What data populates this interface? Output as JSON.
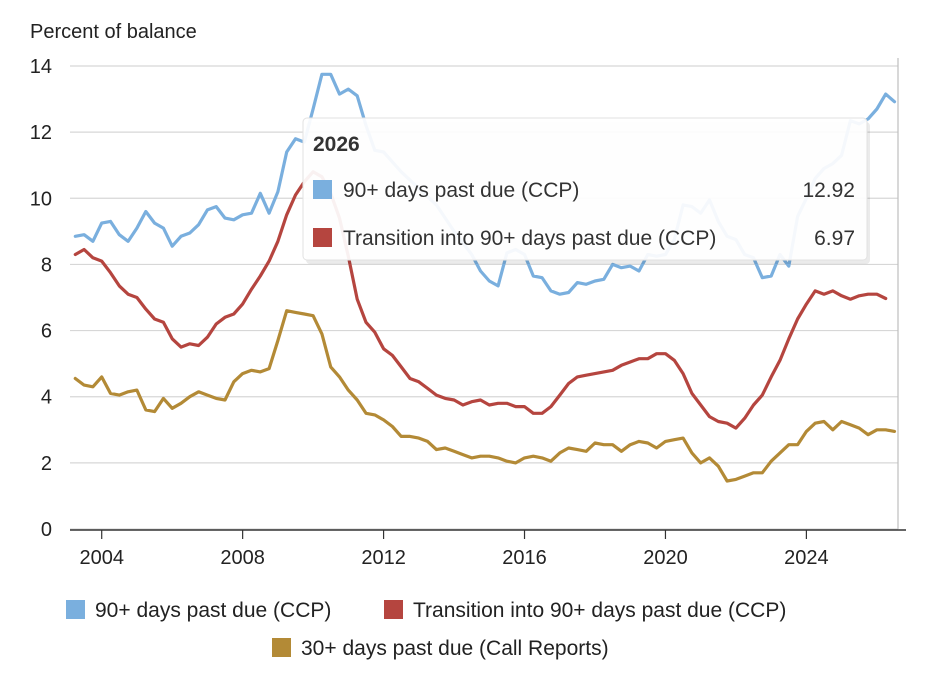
{
  "chart_data": {
    "type": "line",
    "ylabel": "Percent of balance",
    "xlabel": "",
    "xlim": [
      2003.1,
      2026.6
    ],
    "ylim": [
      0,
      14
    ],
    "x_ticks": [
      2004,
      2008,
      2012,
      2016,
      2020,
      2024
    ],
    "y_ticks": [
      0,
      2,
      4,
      6,
      8,
      10,
      12,
      14
    ],
    "grid": "horizontal",
    "legend_position": "bottom",
    "series": [
      {
        "name": "90+ days past due (CCP)",
        "color": "#7aafde",
        "points": [
          [
            2003.25,
            8.85
          ],
          [
            2003.5,
            8.9
          ],
          [
            2003.75,
            8.7
          ],
          [
            2004.0,
            9.25
          ],
          [
            2004.25,
            9.3
          ],
          [
            2004.5,
            8.9
          ],
          [
            2004.75,
            8.7
          ],
          [
            2005.0,
            9.1
          ],
          [
            2005.25,
            9.6
          ],
          [
            2005.5,
            9.25
          ],
          [
            2005.75,
            9.1
          ],
          [
            2006.0,
            8.55
          ],
          [
            2006.25,
            8.85
          ],
          [
            2006.5,
            8.95
          ],
          [
            2006.75,
            9.2
          ],
          [
            2007.0,
            9.65
          ],
          [
            2007.25,
            9.75
          ],
          [
            2007.5,
            9.4
          ],
          [
            2007.75,
            9.35
          ],
          [
            2008.0,
            9.5
          ],
          [
            2008.25,
            9.55
          ],
          [
            2008.5,
            10.15
          ],
          [
            2008.75,
            9.55
          ],
          [
            2009.0,
            10.2
          ],
          [
            2009.25,
            11.4
          ],
          [
            2009.5,
            11.8
          ],
          [
            2009.75,
            11.7
          ],
          [
            2010.0,
            12.7
          ],
          [
            2010.25,
            13.75
          ],
          [
            2010.5,
            13.75
          ],
          [
            2010.75,
            13.15
          ],
          [
            2011.0,
            13.3
          ],
          [
            2011.25,
            13.1
          ],
          [
            2011.5,
            12.2
          ],
          [
            2011.75,
            11.45
          ],
          [
            2012.0,
            11.4
          ],
          [
            2012.25,
            11.1
          ],
          [
            2012.5,
            10.8
          ],
          [
            2013.5,
            9.8
          ],
          [
            2014.0,
            9.0
          ],
          [
            2014.5,
            8.3
          ],
          [
            2014.75,
            7.8
          ],
          [
            2015.0,
            7.5
          ],
          [
            2015.25,
            7.35
          ],
          [
            2015.5,
            8.35
          ],
          [
            2015.75,
            8.45
          ],
          [
            2016.0,
            8.3
          ],
          [
            2016.25,
            7.65
          ],
          [
            2016.5,
            7.6
          ],
          [
            2016.75,
            7.2
          ],
          [
            2017.0,
            7.1
          ],
          [
            2017.25,
            7.15
          ],
          [
            2017.5,
            7.45
          ],
          [
            2017.75,
            7.4
          ],
          [
            2018.0,
            7.5
          ],
          [
            2018.25,
            7.55
          ],
          [
            2018.5,
            8.0
          ],
          [
            2018.75,
            7.9
          ],
          [
            2019.0,
            7.95
          ],
          [
            2019.25,
            7.8
          ],
          [
            2019.5,
            8.3
          ],
          [
            2019.75,
            8.25
          ],
          [
            2020.0,
            8.3
          ],
          [
            2020.25,
            8.75
          ],
          [
            2020.5,
            9.8
          ],
          [
            2020.75,
            9.75
          ],
          [
            2021.0,
            9.55
          ],
          [
            2021.25,
            9.95
          ],
          [
            2021.5,
            9.3
          ],
          [
            2021.75,
            8.85
          ],
          [
            2022.0,
            8.75
          ],
          [
            2022.25,
            8.3
          ],
          [
            2022.5,
            8.2
          ],
          [
            2022.75,
            7.6
          ],
          [
            2023.0,
            7.65
          ],
          [
            2023.25,
            8.3
          ],
          [
            2023.5,
            7.95
          ],
          [
            2023.75,
            9.45
          ],
          [
            2024.0,
            10.0
          ],
          [
            2024.25,
            10.6
          ],
          [
            2024.5,
            10.9
          ],
          [
            2024.75,
            11.05
          ],
          [
            2025.0,
            11.3
          ],
          [
            2025.25,
            12.35
          ],
          [
            2025.5,
            12.25
          ],
          [
            2025.75,
            12.4
          ],
          [
            2026.0,
            12.7
          ],
          [
            2026.25,
            13.15
          ],
          [
            2026.5,
            12.92
          ]
        ]
      },
      {
        "name": "Transition into 90+ days past due (CCP)",
        "color": "#b5453f",
        "points": [
          [
            2003.25,
            8.3
          ],
          [
            2003.5,
            8.45
          ],
          [
            2003.75,
            8.2
          ],
          [
            2004.0,
            8.1
          ],
          [
            2004.25,
            7.75
          ],
          [
            2004.5,
            7.35
          ],
          [
            2004.75,
            7.1
          ],
          [
            2005.0,
            7.0
          ],
          [
            2005.25,
            6.65
          ],
          [
            2005.5,
            6.35
          ],
          [
            2005.75,
            6.25
          ],
          [
            2006.0,
            5.75
          ],
          [
            2006.25,
            5.5
          ],
          [
            2006.5,
            5.6
          ],
          [
            2006.75,
            5.55
          ],
          [
            2007.0,
            5.8
          ],
          [
            2007.25,
            6.2
          ],
          [
            2007.5,
            6.4
          ],
          [
            2007.75,
            6.5
          ],
          [
            2008.0,
            6.8
          ],
          [
            2008.25,
            7.25
          ],
          [
            2008.5,
            7.65
          ],
          [
            2008.75,
            8.1
          ],
          [
            2009.0,
            8.7
          ],
          [
            2009.25,
            9.5
          ],
          [
            2009.5,
            10.1
          ],
          [
            2009.75,
            10.5
          ],
          [
            2010.0,
            10.8
          ],
          [
            2010.25,
            10.65
          ],
          [
            2010.5,
            10.15
          ],
          [
            2010.75,
            9.4
          ],
          [
            2011.0,
            8.25
          ],
          [
            2011.25,
            6.95
          ],
          [
            2011.5,
            6.25
          ],
          [
            2011.75,
            5.95
          ],
          [
            2012.0,
            5.45
          ],
          [
            2012.25,
            5.25
          ],
          [
            2012.5,
            4.9
          ],
          [
            2012.75,
            4.55
          ],
          [
            2013.0,
            4.45
          ],
          [
            2013.25,
            4.25
          ],
          [
            2013.5,
            4.05
          ],
          [
            2013.75,
            3.95
          ],
          [
            2014.0,
            3.9
          ],
          [
            2014.25,
            3.75
          ],
          [
            2014.5,
            3.85
          ],
          [
            2014.75,
            3.9
          ],
          [
            2015.0,
            3.75
          ],
          [
            2015.25,
            3.8
          ],
          [
            2015.5,
            3.8
          ],
          [
            2015.75,
            3.7
          ],
          [
            2016.0,
            3.7
          ],
          [
            2016.25,
            3.5
          ],
          [
            2016.5,
            3.5
          ],
          [
            2016.75,
            3.7
          ],
          [
            2017.0,
            4.05
          ],
          [
            2017.25,
            4.4
          ],
          [
            2017.5,
            4.6
          ],
          [
            2017.75,
            4.65
          ],
          [
            2018.0,
            4.7
          ],
          [
            2018.25,
            4.75
          ],
          [
            2018.5,
            4.8
          ],
          [
            2018.75,
            4.95
          ],
          [
            2019.0,
            5.05
          ],
          [
            2019.25,
            5.15
          ],
          [
            2019.5,
            5.15
          ],
          [
            2019.75,
            5.3
          ],
          [
            2020.0,
            5.3
          ],
          [
            2020.25,
            5.1
          ],
          [
            2020.5,
            4.7
          ],
          [
            2020.75,
            4.1
          ],
          [
            2021.0,
            3.75
          ],
          [
            2021.25,
            3.4
          ],
          [
            2021.5,
            3.25
          ],
          [
            2021.75,
            3.2
          ],
          [
            2022.0,
            3.05
          ],
          [
            2022.25,
            3.35
          ],
          [
            2022.5,
            3.75
          ],
          [
            2022.75,
            4.05
          ],
          [
            2023.0,
            4.6
          ],
          [
            2023.25,
            5.1
          ],
          [
            2023.5,
            5.75
          ],
          [
            2023.75,
            6.35
          ],
          [
            2024.0,
            6.8
          ],
          [
            2024.25,
            7.2
          ],
          [
            2024.5,
            7.1
          ],
          [
            2024.75,
            7.2
          ],
          [
            2025.0,
            7.05
          ],
          [
            2025.25,
            6.95
          ],
          [
            2025.5,
            7.05
          ],
          [
            2025.75,
            7.1
          ],
          [
            2026.0,
            7.1
          ],
          [
            2026.25,
            6.97
          ]
        ]
      },
      {
        "name": "30+ days past due (Call Reports)",
        "color": "#b38a36",
        "points": [
          [
            2003.25,
            4.55
          ],
          [
            2003.5,
            4.35
          ],
          [
            2003.75,
            4.3
          ],
          [
            2004.0,
            4.6
          ],
          [
            2004.25,
            4.1
          ],
          [
            2004.5,
            4.05
          ],
          [
            2004.75,
            4.15
          ],
          [
            2005.0,
            4.2
          ],
          [
            2005.25,
            3.6
          ],
          [
            2005.5,
            3.55
          ],
          [
            2005.75,
            3.95
          ],
          [
            2006.0,
            3.65
          ],
          [
            2006.25,
            3.8
          ],
          [
            2006.5,
            4.0
          ],
          [
            2006.75,
            4.15
          ],
          [
            2007.0,
            4.05
          ],
          [
            2007.25,
            3.95
          ],
          [
            2007.5,
            3.9
          ],
          [
            2007.75,
            4.45
          ],
          [
            2008.0,
            4.7
          ],
          [
            2008.25,
            4.8
          ],
          [
            2008.5,
            4.75
          ],
          [
            2008.75,
            4.85
          ],
          [
            2009.0,
            5.7
          ],
          [
            2009.25,
            6.6
          ],
          [
            2009.5,
            6.55
          ],
          [
            2009.75,
            6.5
          ],
          [
            2010.0,
            6.45
          ],
          [
            2010.25,
            5.9
          ],
          [
            2010.5,
            4.9
          ],
          [
            2010.75,
            4.6
          ],
          [
            2011.0,
            4.2
          ],
          [
            2011.25,
            3.9
          ],
          [
            2011.5,
            3.5
          ],
          [
            2011.75,
            3.45
          ],
          [
            2012.0,
            3.3
          ],
          [
            2012.25,
            3.1
          ],
          [
            2012.5,
            2.8
          ],
          [
            2012.75,
            2.8
          ],
          [
            2013.0,
            2.75
          ],
          [
            2013.25,
            2.65
          ],
          [
            2013.5,
            2.4
          ],
          [
            2013.75,
            2.45
          ],
          [
            2014.0,
            2.35
          ],
          [
            2014.25,
            2.25
          ],
          [
            2014.5,
            2.15
          ],
          [
            2014.75,
            2.2
          ],
          [
            2015.0,
            2.2
          ],
          [
            2015.25,
            2.15
          ],
          [
            2015.5,
            2.05
          ],
          [
            2015.75,
            2.0
          ],
          [
            2016.0,
            2.15
          ],
          [
            2016.25,
            2.2
          ],
          [
            2016.5,
            2.15
          ],
          [
            2016.75,
            2.05
          ],
          [
            2017.0,
            2.3
          ],
          [
            2017.25,
            2.45
          ],
          [
            2017.5,
            2.4
          ],
          [
            2017.75,
            2.35
          ],
          [
            2018.0,
            2.6
          ],
          [
            2018.25,
            2.55
          ],
          [
            2018.5,
            2.55
          ],
          [
            2018.75,
            2.35
          ],
          [
            2019.0,
            2.55
          ],
          [
            2019.25,
            2.65
          ],
          [
            2019.5,
            2.6
          ],
          [
            2019.75,
            2.45
          ],
          [
            2020.0,
            2.65
          ],
          [
            2020.25,
            2.7
          ],
          [
            2020.5,
            2.75
          ],
          [
            2020.75,
            2.3
          ],
          [
            2021.0,
            2.0
          ],
          [
            2021.25,
            2.15
          ],
          [
            2021.5,
            1.9
          ],
          [
            2021.75,
            1.45
          ],
          [
            2022.0,
            1.5
          ],
          [
            2022.25,
            1.6
          ],
          [
            2022.5,
            1.7
          ],
          [
            2022.75,
            1.7
          ],
          [
            2023.0,
            2.05
          ],
          [
            2023.25,
            2.3
          ],
          [
            2023.5,
            2.55
          ],
          [
            2023.75,
            2.55
          ],
          [
            2024.0,
            2.95
          ],
          [
            2024.25,
            3.2
          ],
          [
            2024.5,
            3.25
          ],
          [
            2024.75,
            3.0
          ],
          [
            2025.0,
            3.25
          ],
          [
            2025.25,
            3.15
          ],
          [
            2025.5,
            3.05
          ],
          [
            2025.75,
            2.85
          ],
          [
            2026.0,
            3.0
          ],
          [
            2026.25,
            3.0
          ],
          [
            2026.5,
            2.95
          ]
        ]
      }
    ],
    "tooltip": {
      "title": "2026",
      "items": [
        {
          "label": "90+ days past due (CCP)",
          "value": "12.92",
          "color": "#7aafde"
        },
        {
          "label": "Transition into 90+ days past due (CCP)",
          "value": "6.97",
          "color": "#b5453f"
        }
      ]
    }
  }
}
